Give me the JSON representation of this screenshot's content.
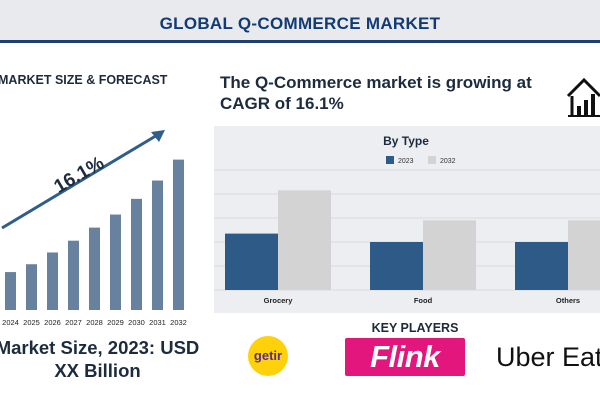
{
  "header": {
    "title": "GLOBAL Q-COMMERCE MARKET"
  },
  "left_panel": {
    "heading": "MARKET SIZE & FORECAST",
    "cagr_label": "16.1%",
    "market_size_line1": "Market Size, 2023: USD",
    "market_size_line2": "XX Billion"
  },
  "right_panel": {
    "cagr_line1": "The Q-Commerce market is growing at",
    "cagr_line2": "CAGR of 16.1%",
    "icon": "house-chart-icon"
  },
  "key_players": {
    "heading": "KEY PLAYERS",
    "logos": [
      "getir",
      "Flink",
      "Uber Eats"
    ]
  },
  "colors": {
    "primary": "#2e5a88",
    "secondary": "#d3d3d3",
    "forecast_bar": "#67819f",
    "arrow": "#2f5d8c",
    "title": "#123a74"
  },
  "chart_data": [
    {
      "type": "bar",
      "title": "",
      "categories": [
        "2024",
        "2025",
        "2026",
        "2027",
        "2028",
        "2029",
        "2030",
        "2031",
        "2032"
      ],
      "values": [
        29,
        35,
        44,
        53,
        63,
        73,
        85,
        99,
        115
      ],
      "ylim": [
        0,
        130
      ],
      "annotation": "16.1%",
      "grid": false
    },
    {
      "type": "bar",
      "title": "By Type",
      "categories": [
        "Grocery",
        "Food",
        "Others"
      ],
      "series": [
        {
          "name": "2023",
          "values": [
            47,
            40,
            40
          ]
        },
        {
          "name": "2032",
          "values": [
            83,
            58,
            58
          ]
        }
      ],
      "ylim": [
        0,
        100
      ],
      "legend": "top-center",
      "grid": true
    }
  ]
}
